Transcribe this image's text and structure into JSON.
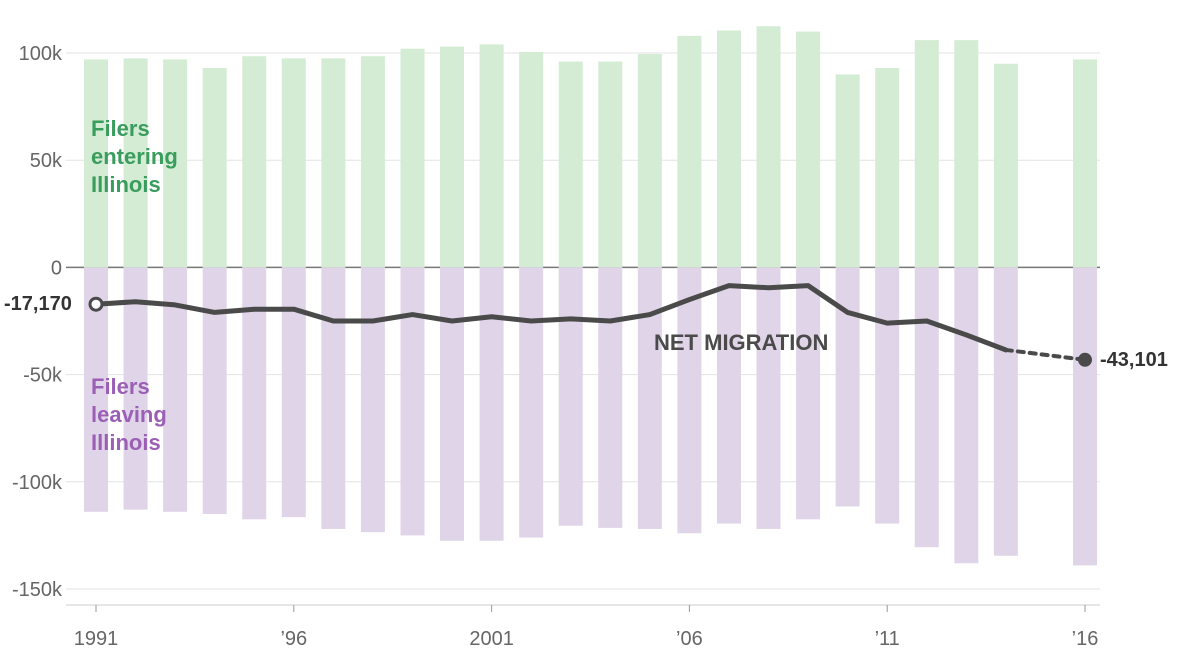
{
  "chart_data": {
    "type": "bar",
    "x": [
      1991,
      1992,
      1993,
      1994,
      1995,
      1996,
      1997,
      1998,
      1999,
      2000,
      2001,
      2002,
      2003,
      2004,
      2005,
      2006,
      2007,
      2008,
      2009,
      2010,
      2011,
      2012,
      2013,
      2014,
      2016
    ],
    "series": [
      {
        "name": "Filers entering Illinois",
        "values": [
          97000,
          97500,
          97000,
          93000,
          98500,
          97500,
          97500,
          98500,
          102000,
          103000,
          104000,
          100500,
          96000,
          96000,
          99500,
          108000,
          110500,
          112500,
          110000,
          90000,
          93000,
          106000,
          106000,
          95000,
          97000
        ],
        "color": "#d3ecd3"
      },
      {
        "name": "Filers leaving Illinois",
        "values": [
          -114000,
          -113000,
          -114000,
          -115000,
          -117500,
          -116500,
          -122000,
          -123500,
          -125000,
          -127500,
          -127500,
          -126000,
          -120500,
          -121500,
          -122000,
          -124000,
          -119500,
          -122000,
          -117500,
          -111500,
          -119500,
          -130500,
          -138000,
          -134500,
          -139000
        ],
        "color": "#e0d5e8"
      },
      {
        "name": "NET MIGRATION",
        "x": [
          1991,
          1992,
          1993,
          1994,
          1995,
          1996,
          1997,
          1998,
          1999,
          2000,
          2001,
          2002,
          2003,
          2004,
          2005,
          2006,
          2007,
          2008,
          2009,
          2010,
          2011,
          2012,
          2013,
          2014,
          2016
        ],
        "values": [
          -17170,
          -16000,
          -17500,
          -21000,
          -19500,
          -19500,
          -25000,
          -25000,
          -22000,
          -25000,
          -23000,
          -25000,
          -24000,
          -25000,
          -22000,
          -15000,
          -8500,
          -9500,
          -8500,
          -21000,
          -26000,
          -25000,
          -31500,
          -38500,
          -43101
        ],
        "color": "#4a4a4a",
        "dashed_from": 2014
      }
    ],
    "xticks": [
      1991,
      1996,
      2001,
      2006,
      2011,
      2016
    ],
    "xtick_labels": [
      "1991",
      "’96",
      "2001",
      "’06",
      "’11",
      "’16"
    ],
    "yticks": [
      100000,
      50000,
      0,
      -50000,
      -100000,
      -150000
    ],
    "ytick_labels": [
      "100k",
      "50k",
      "0",
      "-50k",
      "-100k",
      "-150k"
    ],
    "ylim": [
      -150000,
      100000
    ],
    "xlim": [
      1991,
      2016
    ],
    "grid": true,
    "annotations": {
      "entering": [
        "Filers",
        "entering",
        "Illinois"
      ],
      "leaving": [
        "Filers",
        "leaving",
        "Illinois"
      ],
      "net": "NET MIGRATION",
      "start_value": "-17,170",
      "end_value": "-43,101"
    },
    "colors": {
      "entering_text": "#3a9d5d",
      "leaving_text": "#9b5fb5",
      "line": "#4a4a4a",
      "grid": "#e3e3e3",
      "zero_line": "#777777",
      "axis_text": "#666666"
    }
  }
}
